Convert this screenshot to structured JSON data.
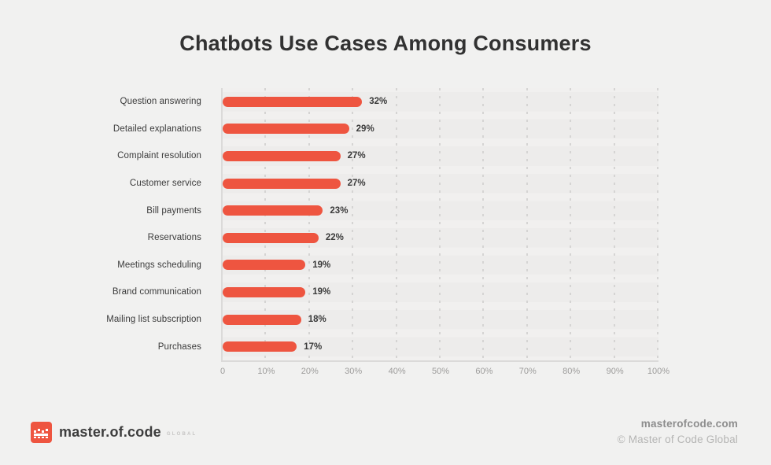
{
  "page": {
    "title": "Chatbots Use Cases Among Consumers"
  },
  "chart_data": {
    "type": "bar",
    "orientation": "horizontal",
    "title": "Chatbots Use Cases Among Consumers",
    "categories": [
      "Question answering",
      "Detailed explanations",
      "Complaint resolution",
      "Customer service",
      "Bill payments",
      "Reservations",
      "Meetings scheduling",
      "Brand communication",
      "Mailing list subscription",
      "Purchases"
    ],
    "values": [
      32,
      29,
      27,
      27,
      23,
      22,
      19,
      19,
      18,
      17
    ],
    "value_labels": [
      "32%",
      "29%",
      "27%",
      "27%",
      "23%",
      "22%",
      "19%",
      "19%",
      "18%",
      "17%"
    ],
    "x_ticks": [
      "0",
      "10%",
      "20%",
      "30%",
      "40%",
      "50%",
      "60%",
      "70%",
      "80%",
      "90%",
      "100%"
    ],
    "xlim": [
      0,
      100
    ],
    "xlabel": "",
    "ylabel": "",
    "grid": "vertical-dotted",
    "legend": "none",
    "bar_color": "#ee5540"
  },
  "footer": {
    "logo": {
      "brand": "master.of.code",
      "suffix": "GLOBAL",
      "icon": "pixel-crown-icon"
    },
    "website": "masterofcode.com",
    "copyright": "© Master of Code Global"
  },
  "colors": {
    "background": "#f1f1f0",
    "plot_stripe": "#edeceb",
    "bar": "#ee5540",
    "axis_line": "#dbdad9",
    "grid_dot": "#d5d4d3",
    "title_text": "#323232",
    "label_text": "#3b3b3b",
    "tick_text": "#9d9c9b",
    "website_text": "#8d8d8d",
    "copyright_text": "#b5b5b4"
  }
}
